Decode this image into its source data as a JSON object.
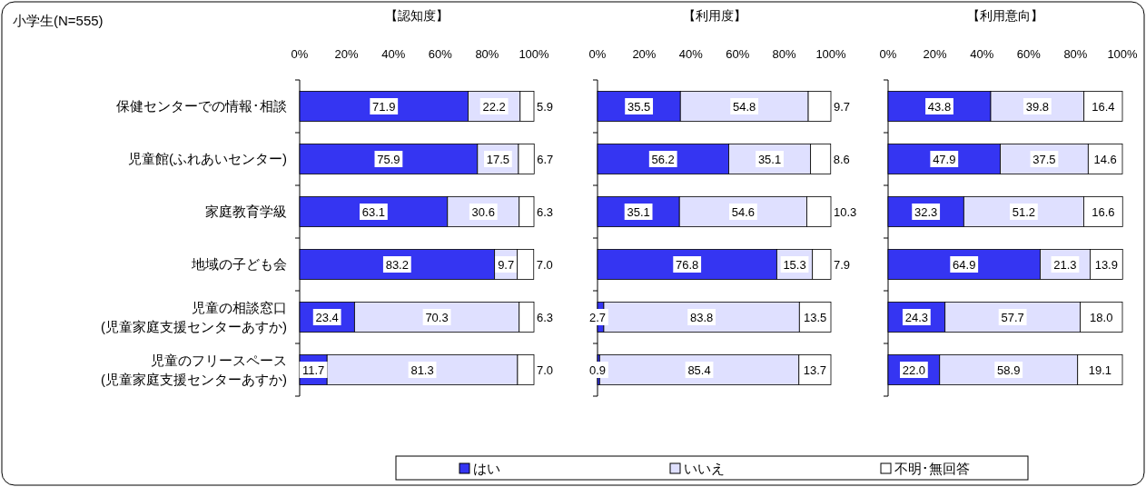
{
  "chart_data": [
    {
      "type": "bar",
      "orientation": "horizontal",
      "stacked": true,
      "title": "【認知度】",
      "annotations": [
        "小学生(N=555)"
      ],
      "legend": "bottom",
      "categories": [
        "保健センターでの情報･相談",
        "児童館(ふれあいセンター)",
        "家庭教育学級",
        "地域の子ども会",
        "児童の相談窓口\n(児童家庭支援センターあすか)",
        "児童のフリースペース\n(児童家庭支援センターあすか)"
      ],
      "xlim": [
        0,
        100
      ],
      "xticks": [
        {
          "value": 0,
          "label": "0%"
        },
        {
          "value": 20,
          "label": "20%"
        },
        {
          "value": 40,
          "label": "40%"
        },
        {
          "value": 60,
          "label": "60%"
        },
        {
          "value": 80,
          "label": "80%"
        },
        {
          "value": 100,
          "label": "100%"
        }
      ],
      "series": [
        {
          "name": "はい",
          "color": "#3535f2",
          "values": [
            71.9,
            75.9,
            63.1,
            83.2,
            23.4,
            11.7
          ],
          "value_labels": [
            "71.9",
            "75.9",
            "63.1",
            "83.2",
            "23.4",
            "11.7"
          ]
        },
        {
          "name": "いいえ",
          "color": "#dfe0ff",
          "values": [
            22.2,
            17.5,
            30.6,
            9.7,
            70.3,
            81.3
          ],
          "value_labels": [
            "22.2",
            "17.5",
            "30.6",
            "9.7",
            "70.3",
            "81.3"
          ]
        },
        {
          "name": "不明･無回答",
          "color": "#ffffff",
          "values": [
            5.9,
            6.7,
            6.3,
            7.0,
            6.3,
            7.0
          ],
          "value_labels": [
            "5.9",
            "6.7",
            "6.3",
            "7.0",
            "6.3",
            "7.0"
          ]
        }
      ]
    },
    {
      "type": "bar",
      "orientation": "horizontal",
      "stacked": true,
      "title": "【利用度】",
      "tick_labels": "x",
      "categories": [
        null,
        null,
        null,
        null,
        null,
        null
      ],
      "xlim": [
        0,
        100
      ],
      "xticks": [
        {
          "value": 0,
          "label": "0%"
        },
        {
          "value": 20,
          "label": "20%"
        },
        {
          "value": 40,
          "label": "40%"
        },
        {
          "value": 60,
          "label": "60%"
        },
        {
          "value": 80,
          "label": "80%"
        },
        {
          "value": 100,
          "label": "100%"
        }
      ],
      "series": [
        {
          "color": "#3535f2",
          "values": [
            35.5,
            56.2,
            35.1,
            76.8,
            2.7,
            0.9
          ],
          "value_labels": [
            "35.5",
            "56.2",
            "35.1",
            "76.8",
            "2.7",
            "0.9"
          ]
        },
        {
          "color": "#dfe0ff",
          "values": [
            54.8,
            35.1,
            54.6,
            15.3,
            83.8,
            85.4
          ],
          "value_labels": [
            "54.8",
            "35.1",
            "54.6",
            "15.3",
            "83.8",
            "85.4"
          ]
        },
        {
          "color": "#ffffff",
          "values": [
            9.7,
            8.6,
            10.3,
            7.9,
            13.5,
            13.7
          ],
          "value_labels": [
            "9.7",
            "8.6",
            "10.3",
            "7.9",
            "13.5",
            "13.7"
          ]
        }
      ]
    },
    {
      "type": "bar",
      "orientation": "horizontal",
      "stacked": true,
      "title": "【利用意向】",
      "tick_labels": "x",
      "categories": [
        null,
        null,
        null,
        null,
        null,
        null
      ],
      "xlim": [
        0,
        100
      ],
      "xticks": [
        {
          "value": 0,
          "label": "0%"
        },
        {
          "value": 20,
          "label": "20%"
        },
        {
          "value": 40,
          "label": "40%"
        },
        {
          "value": 60,
          "label": "60%"
        },
        {
          "value": 80,
          "label": "80%"
        },
        {
          "value": 100,
          "label": "100%"
        }
      ],
      "series": [
        {
          "color": "#3535f2",
          "values": [
            43.8,
            47.9,
            32.3,
            64.9,
            24.3,
            22.0
          ],
          "value_labels": [
            "43.8",
            "47.9",
            "32.3",
            "64.9",
            "24.3",
            "22.0"
          ]
        },
        {
          "color": "#dfe0ff",
          "values": [
            39.8,
            37.5,
            51.2,
            21.3,
            57.7,
            58.9
          ],
          "value_labels": [
            "39.8",
            "37.5",
            "51.2",
            "21.3",
            "57.7",
            "58.9"
          ]
        },
        {
          "color": "#ffffff",
          "values": [
            16.4,
            14.6,
            16.6,
            13.9,
            18.0,
            19.1
          ],
          "value_labels": [
            "16.4",
            "14.6",
            "16.6",
            "13.9",
            "18.0",
            "19.1"
          ]
        }
      ]
    }
  ]
}
